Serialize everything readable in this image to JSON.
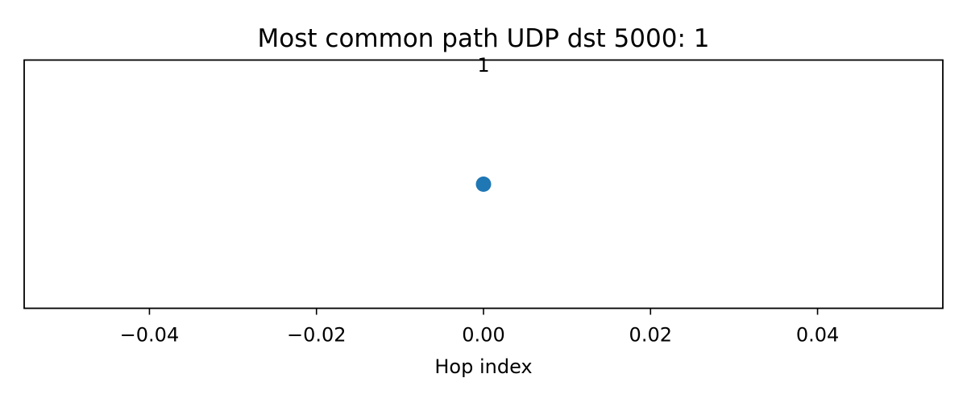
{
  "chart_data": {
    "type": "scatter",
    "title": "Most common path UDP dst 5000: 1",
    "xlabel": "Hop index",
    "ylabel": "",
    "xlim": [
      -0.055,
      0.055
    ],
    "ylim": [
      -0.075,
      0.075
    ],
    "x_ticks": [
      {
        "value": -0.04,
        "label": "−0.04"
      },
      {
        "value": -0.02,
        "label": "−0.02"
      },
      {
        "value": 0.0,
        "label": "0.00"
      },
      {
        "value": 0.02,
        "label": "0.02"
      },
      {
        "value": 0.04,
        "label": "0.04"
      }
    ],
    "y_ticks_visible": false,
    "grid": false,
    "legend": "none",
    "series": [
      {
        "color": "#1f77b4",
        "points": [
          {
            "x": 0.0,
            "y": 0.0,
            "label": "1"
          }
        ]
      }
    ]
  }
}
